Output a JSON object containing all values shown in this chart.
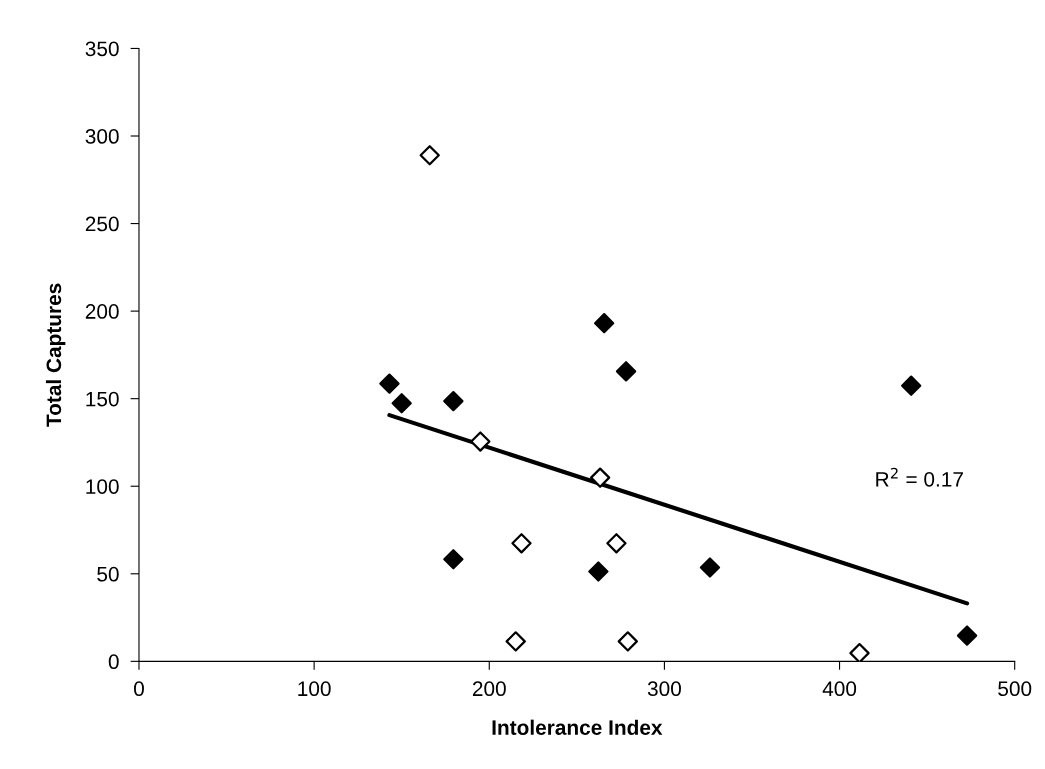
{
  "chart_data": {
    "type": "scatter",
    "xlabel": "Intolerance Index",
    "ylabel": "Total Captures",
    "xlim": [
      0,
      500
    ],
    "xticks": [
      0,
      100,
      200,
      300,
      400,
      500
    ],
    "ylim": [
      0,
      350
    ],
    "yticks": [
      0,
      50,
      100,
      150,
      200,
      250,
      300,
      350
    ],
    "grid": false,
    "legend": false,
    "series": [
      {
        "color": "#000000",
        "marker": "diamond",
        "x": [
          143,
          150,
          179.5,
          179.5,
          265.6,
          278.1,
          440.9,
          262.3,
          326,
          472.8
        ],
        "values": [
          158.6,
          147.4,
          148.6,
          58.3,
          193.1,
          165.6,
          157.4,
          51.3,
          53.6,
          14.7
        ]
      },
      {
        "color": "#ffffff",
        "marker": "diamond",
        "x": [
          166,
          194.9,
          218.4,
          215.1,
          263.3,
          272.6,
          279.1,
          411.4
        ],
        "values": [
          289,
          125.5,
          67.4,
          11.4,
          104.9,
          67.4,
          11.4,
          4.7
        ]
      },
      {
        "type": "line",
        "color": "#000000",
        "marker": "none",
        "x": [
          143,
          472.8
        ],
        "values": [
          140.6,
          33.1
        ]
      }
    ],
    "annotations": [
      "R$^{2}$ = 0.17"
    ]
  }
}
